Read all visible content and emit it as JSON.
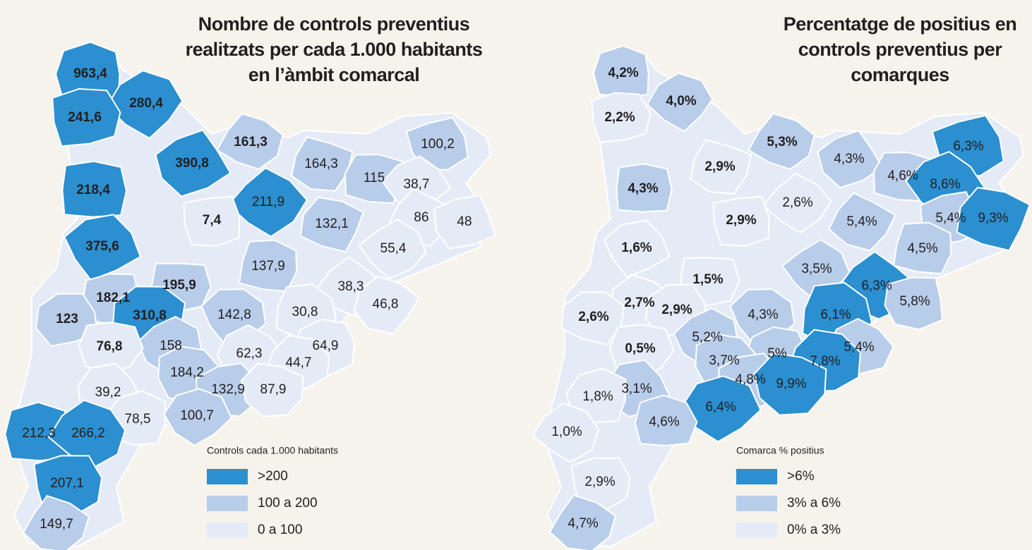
{
  "maps": [
    {
      "title": [
        "Nombre de controls preventius",
        "realitzats per cada 1.000 habitants",
        "en l’àmbit comarcal"
      ],
      "regions": [
        {
          "label": "963,4",
          "color": "#2b8fd0",
          "bold": true
        },
        {
          "label": "280,4",
          "color": "#2b8fd0",
          "bold": true
        },
        {
          "label": "241,6",
          "color": "#2b8fd0",
          "bold": true
        },
        {
          "label": "161,3",
          "color": "#b8cdea",
          "bold": true
        },
        {
          "label": "100,2",
          "color": "#b8cdea",
          "bold": false
        },
        {
          "label": "164,3",
          "color": "#b8cdea",
          "bold": false
        },
        {
          "label": "390,8",
          "color": "#2b8fd0",
          "bold": true
        },
        {
          "label": "115",
          "color": "#b8cdea",
          "bold": false
        },
        {
          "label": "38,7",
          "color": "#e4ebf7",
          "bold": false
        },
        {
          "label": "218,4",
          "color": "#2b8fd0",
          "bold": true
        },
        {
          "label": "211,9",
          "color": "#2b8fd0",
          "bold": false
        },
        {
          "label": "7,4",
          "color": "#e4ebf7",
          "bold": true
        },
        {
          "label": "86",
          "color": "#e4ebf7",
          "bold": false
        },
        {
          "label": "48",
          "color": "#e4ebf7",
          "bold": false
        },
        {
          "label": "132,1",
          "color": "#b8cdea",
          "bold": false
        },
        {
          "label": "375,6",
          "color": "#2b8fd0",
          "bold": true
        },
        {
          "label": "137,9",
          "color": "#b8cdea",
          "bold": false
        },
        {
          "label": "55,4",
          "color": "#e4ebf7",
          "bold": false
        },
        {
          "label": "195,9",
          "color": "#b8cdea",
          "bold": true
        },
        {
          "label": "38,3",
          "color": "#e4ebf7",
          "bold": false
        },
        {
          "label": "182,1",
          "color": "#b8cdea",
          "bold": true
        },
        {
          "label": "46,8",
          "color": "#e4ebf7",
          "bold": false
        },
        {
          "label": "123",
          "color": "#b8cdea",
          "bold": true
        },
        {
          "label": "310,8",
          "color": "#2b8fd0",
          "bold": true
        },
        {
          "label": "142,8",
          "color": "#b8cdea",
          "bold": false
        },
        {
          "label": "30,8",
          "color": "#e4ebf7",
          "bold": false
        },
        {
          "label": "158",
          "color": "#b8cdea",
          "bold": false
        },
        {
          "label": "76,8",
          "color": "#e4ebf7",
          "bold": true
        },
        {
          "label": "62,3",
          "color": "#e4ebf7",
          "bold": false
        },
        {
          "label": "64,9",
          "color": "#e4ebf7",
          "bold": false
        },
        {
          "label": "184,2",
          "color": "#b8cdea",
          "bold": false
        },
        {
          "label": "44,7",
          "color": "#e4ebf7",
          "bold": false
        },
        {
          "label": "132,9",
          "color": "#b8cdea",
          "bold": false
        },
        {
          "label": "87,9",
          "color": "#e4ebf7",
          "bold": false
        },
        {
          "label": "39,2",
          "color": "#e4ebf7",
          "bold": false
        },
        {
          "label": "78,5",
          "color": "#e4ebf7",
          "bold": false
        },
        {
          "label": "100,7",
          "color": "#b8cdea",
          "bold": false
        },
        {
          "label": "212,3",
          "color": "#2b8fd0",
          "bold": false
        },
        {
          "label": "266,2",
          "color": "#2b8fd0",
          "bold": false
        },
        {
          "label": "207,1",
          "color": "#2b8fd0",
          "bold": false
        },
        {
          "label": "149,7",
          "color": "#b8cdea",
          "bold": false
        }
      ],
      "legend": {
        "title": "Controls cada 1.000 habitants",
        "items": [
          {
            "label": ">200",
            "color": "#2b8fd0"
          },
          {
            "label": "100 a 200",
            "color": "#b8cdea"
          },
          {
            "label": "0 a 100",
            "color": "#e4ebf7"
          }
        ]
      }
    },
    {
      "title": [
        "Percentatge de positius en",
        "controls preventius per",
        "comarques"
      ],
      "regions": [
        {
          "label": "4,2%",
          "color": "#b8cdea",
          "bold": true
        },
        {
          "label": "4,0%",
          "color": "#b8cdea",
          "bold": true
        },
        {
          "label": "2,2%",
          "color": "#e4ebf7",
          "bold": true
        },
        {
          "label": "5,3%",
          "color": "#b8cdea",
          "bold": true
        },
        {
          "label": "6,3%",
          "color": "#2b8fd0",
          "bold": false
        },
        {
          "label": "2,9%",
          "color": "#e4ebf7",
          "bold": true
        },
        {
          "label": "4,3%",
          "color": "#b8cdea",
          "bold": false
        },
        {
          "label": "4,6%",
          "color": "#b8cdea",
          "bold": false
        },
        {
          "label": "8,6%",
          "color": "#2b8fd0",
          "bold": false
        },
        {
          "label": "4,3%",
          "color": "#b8cdea",
          "bold": true
        },
        {
          "label": "2,6%",
          "color": "#e4ebf7",
          "bold": false
        },
        {
          "label": "2,9%",
          "color": "#e4ebf7",
          "bold": true
        },
        {
          "label": "5,4%",
          "color": "#b8cdea",
          "bold": false
        },
        {
          "label": "5,4%",
          "color": "#b8cdea",
          "bold": false
        },
        {
          "label": "9,3%",
          "color": "#2b8fd0",
          "bold": false
        },
        {
          "label": "1,6%",
          "color": "#e4ebf7",
          "bold": true
        },
        {
          "label": "4,5%",
          "color": "#b8cdea",
          "bold": false
        },
        {
          "label": "3,5%",
          "color": "#b8cdea",
          "bold": false
        },
        {
          "label": "1,5%",
          "color": "#e4ebf7",
          "bold": true
        },
        {
          "label": "6,3%",
          "color": "#2b8fd0",
          "bold": false
        },
        {
          "label": "5,8%",
          "color": "#b8cdea",
          "bold": false
        },
        {
          "label": "2,7%",
          "color": "#e4ebf7",
          "bold": true
        },
        {
          "label": "2,9%",
          "color": "#e4ebf7",
          "bold": true
        },
        {
          "label": "2,6%",
          "color": "#e4ebf7",
          "bold": true
        },
        {
          "label": "4,3%",
          "color": "#b8cdea",
          "bold": false
        },
        {
          "label": "6,1%",
          "color": "#2b8fd0",
          "bold": false
        },
        {
          "label": "5,2%",
          "color": "#b8cdea",
          "bold": false
        },
        {
          "label": "0,5%",
          "color": "#e4ebf7",
          "bold": true
        },
        {
          "label": "5,4%",
          "color": "#b8cdea",
          "bold": false
        },
        {
          "label": "5%",
          "color": "#b8cdea",
          "bold": false
        },
        {
          "label": "3,7%",
          "color": "#b8cdea",
          "bold": false
        },
        {
          "label": "7,8%",
          "color": "#2b8fd0",
          "bold": false
        },
        {
          "label": "4,8%",
          "color": "#b8cdea",
          "bold": false
        },
        {
          "label": "9,9%",
          "color": "#2b8fd0",
          "bold": false
        },
        {
          "label": "3,1%",
          "color": "#b8cdea",
          "bold": false
        },
        {
          "label": "1,8%",
          "color": "#e4ebf7",
          "bold": false
        },
        {
          "label": "6,4%",
          "color": "#2b8fd0",
          "bold": false
        },
        {
          "label": "4,6%",
          "color": "#b8cdea",
          "bold": false
        },
        {
          "label": "1,0%",
          "color": "#e4ebf7",
          "bold": false
        },
        {
          "label": "2,9%",
          "color": "#e4ebf7",
          "bold": false
        },
        {
          "label": "4,7%",
          "color": "#b8cdea",
          "bold": false
        }
      ],
      "legend": {
        "title": "Comarca % positius",
        "items": [
          {
            "label": ">6%",
            "color": "#2b8fd0"
          },
          {
            "label": "3% a 6%",
            "color": "#b8cdea"
          },
          {
            "label": "0% a 3%",
            "color": "#e4ebf7"
          }
        ]
      }
    }
  ]
}
